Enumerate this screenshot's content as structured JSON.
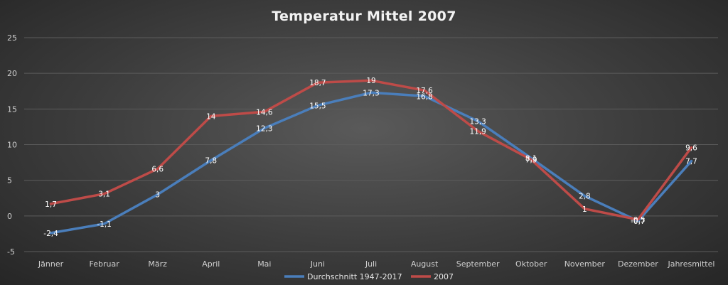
{
  "chart_data": {
    "type": "line",
    "title": "Temperatur Mittel 2007",
    "xlabel": "",
    "ylabel": "",
    "ylim": [
      -5,
      25
    ],
    "yticks": [
      "25",
      "20",
      "15",
      "10",
      "5",
      "0",
      "-5"
    ],
    "grid": true,
    "legend": "bottom",
    "categories": [
      "Jänner",
      "Februar",
      "März",
      "April",
      "Mai",
      "Juni",
      "Juli",
      "August",
      "September",
      "Oktober",
      "November",
      "Dezember",
      "Jahresmittel"
    ],
    "series": [
      {
        "name": "Durchschnitt 1947-2017",
        "color": "#4a7ebb",
        "values": [
          -2.4,
          -1.1,
          3,
          7.8,
          12.3,
          15.5,
          17.3,
          16.8,
          13.3,
          8.1,
          2.8,
          -0.7,
          7.7
        ],
        "labels": [
          "-2,4",
          "-1,1",
          "3",
          "7,8",
          "12,3",
          "15,5",
          "17,3",
          "16,8",
          "13,3",
          "8,1",
          "2,8",
          "-0,7",
          "7,7"
        ]
      },
      {
        "name": "2007",
        "color": "#be4b48",
        "values": [
          1.7,
          3.1,
          6.6,
          14,
          14.6,
          18.7,
          19,
          17.6,
          11.9,
          7.9,
          1,
          -0.5,
          9.6
        ],
        "labels": [
          "1,7",
          "3,1",
          "6,6",
          "14",
          "14,6",
          "18,7",
          "19",
          "17,6",
          "11,9",
          "7,9",
          "1",
          "-0,5",
          "9,6"
        ]
      }
    ]
  }
}
